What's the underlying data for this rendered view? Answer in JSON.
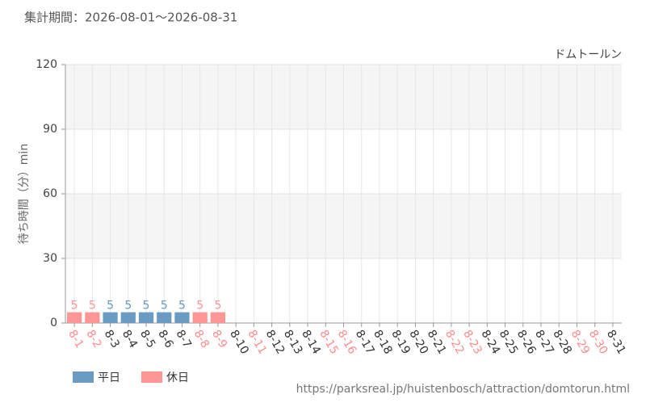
{
  "chart_data": {
    "type": "bar",
    "title": "集計期間：2026-08-01～2026-08-31",
    "subtitle": "ドムトールン",
    "y_label": "待ち時間（分）min",
    "source": "https://parksreal.jp/huistenbosch/attraction/domtorun.html",
    "categories": [
      "8-1",
      "8-2",
      "8-3",
      "8-4",
      "8-5",
      "8-6",
      "8-7",
      "8-8",
      "8-9",
      "8-10",
      "8-11",
      "8-12",
      "8-13",
      "8-14",
      "8-15",
      "8-16",
      "8-17",
      "8-18",
      "8-19",
      "8-20",
      "8-21",
      "8-22",
      "8-23",
      "8-24",
      "8-25",
      "8-26",
      "8-27",
      "8-28",
      "8-29",
      "8-30",
      "8-31"
    ],
    "category_colors": [
      "#ff8c8c",
      "#ff8c8c",
      "#333333",
      "#333333",
      "#333333",
      "#333333",
      "#333333",
      "#ff8c8c",
      "#ff8c8c",
      "#333333",
      "#ff8c8c",
      "#333333",
      "#333333",
      "#333333",
      "#ff8c8c",
      "#ff8c8c",
      "#333333",
      "#333333",
      "#333333",
      "#333333",
      "#333333",
      "#ff8c8c",
      "#ff8c8c",
      "#333333",
      "#333333",
      "#333333",
      "#333333",
      "#333333",
      "#ff8c8c",
      "#ff8c8c",
      "#333333"
    ],
    "series": [
      {
        "name": "平日",
        "color": "#6b9bc3",
        "values": [
          null,
          null,
          5,
          5,
          5,
          5,
          5,
          null,
          null,
          null,
          null,
          null,
          null,
          null,
          null,
          null,
          null,
          null,
          null,
          null,
          null,
          null,
          null,
          null,
          null,
          null,
          null,
          null,
          null,
          null,
          null
        ]
      },
      {
        "name": "休日",
        "color": "#ff9696",
        "values": [
          5,
          5,
          null,
          null,
          null,
          null,
          null,
          5,
          5,
          null,
          null,
          null,
          null,
          null,
          null,
          null,
          null,
          null,
          null,
          null,
          null,
          null,
          null,
          null,
          null,
          null,
          null,
          null,
          null,
          null,
          null
        ]
      }
    ],
    "ylim": [
      0,
      120
    ],
    "yticks": [
      0,
      30,
      60,
      90,
      120
    ],
    "grid": true,
    "stripes": true
  }
}
